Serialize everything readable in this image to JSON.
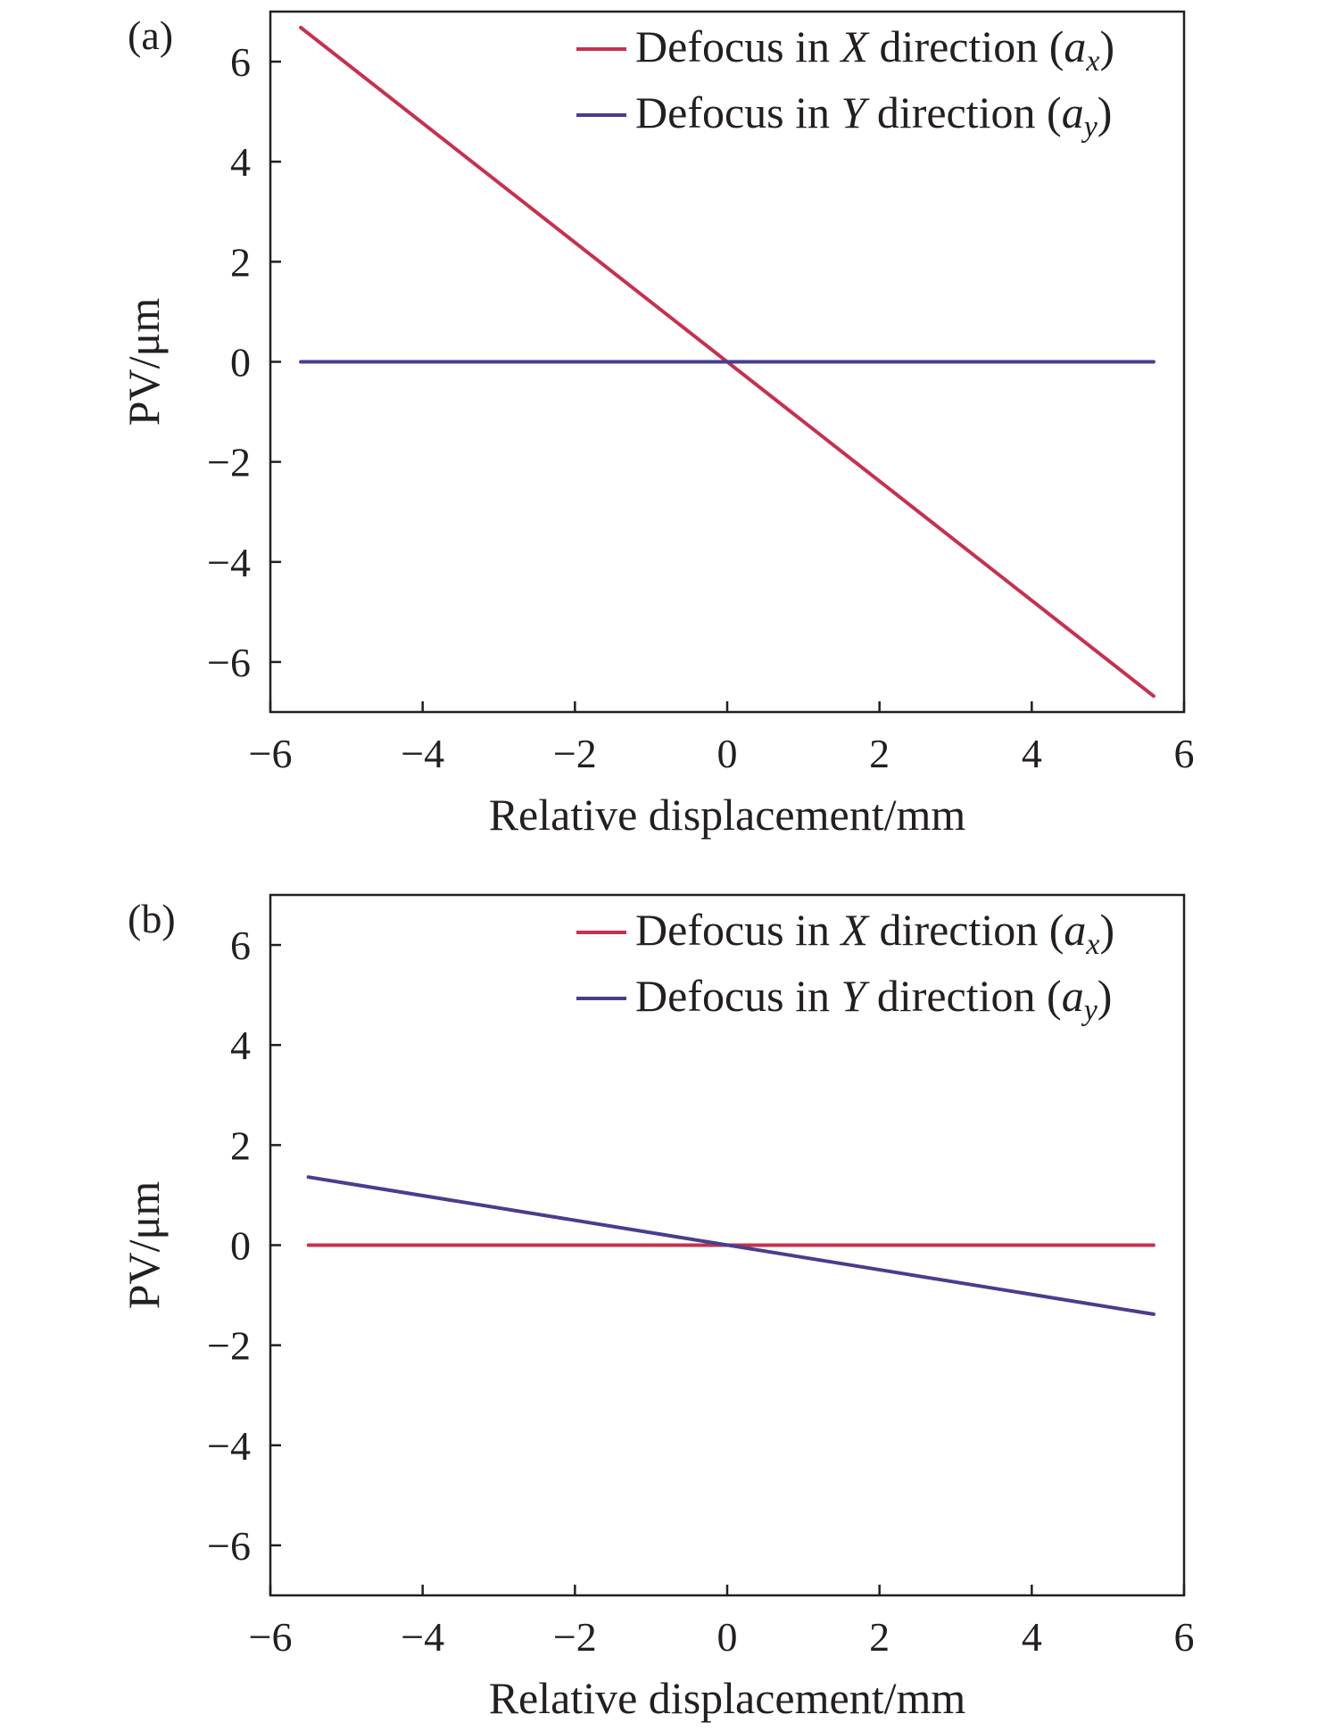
{
  "colors": {
    "series_x": "#c8304e",
    "series_y": "#473e8e",
    "axes": "#231f20"
  },
  "chart_data": [
    {
      "type": "line",
      "panel_label": "(a)",
      "xlabel": "Relative displacement/mm",
      "ylabel": "PV/μm",
      "xlim": [
        -6,
        6
      ],
      "ylim": [
        -7,
        7
      ],
      "xticks": [
        -6,
        -4,
        -2,
        0,
        2,
        4,
        6
      ],
      "yticks": [
        -6,
        -4,
        -2,
        0,
        2,
        4,
        6
      ],
      "grid": false,
      "legend_position": "top-right",
      "series": [
        {
          "name_parts": [
            "Defocus in ",
            "X",
            " direction (",
            "a",
            "x",
            ")"
          ],
          "color": "#c8304e",
          "x": [
            -5.6,
            5.6
          ],
          "y": [
            6.68,
            -6.68
          ]
        },
        {
          "name_parts": [
            "Defocus in ",
            "Y",
            " direction (",
            "a",
            "y",
            ")"
          ],
          "color": "#473e8e",
          "x": [
            -5.6,
            5.6
          ],
          "y": [
            0,
            0
          ]
        }
      ]
    },
    {
      "type": "line",
      "panel_label": "(b)",
      "xlabel": "Relative displacement/mm",
      "ylabel": "PV/μm",
      "xlim": [
        -6,
        6
      ],
      "ylim": [
        -7,
        7
      ],
      "xticks": [
        -6,
        -4,
        -2,
        0,
        2,
        4,
        6
      ],
      "yticks": [
        -6,
        -4,
        -2,
        0,
        2,
        4,
        6
      ],
      "grid": false,
      "legend_position": "top-right",
      "series": [
        {
          "name_parts": [
            "Defocus in ",
            "X",
            " direction (",
            "a",
            "x",
            ")"
          ],
          "color": "#c8304e",
          "x": [
            -5.5,
            5.6
          ],
          "y": [
            0,
            0
          ]
        },
        {
          "name_parts": [
            "Defocus in ",
            "Y",
            " direction (",
            "a",
            "y",
            ")"
          ],
          "color": "#473e8e",
          "x": [
            -5.5,
            5.6
          ],
          "y": [
            1.36,
            -1.38
          ]
        }
      ]
    }
  ]
}
